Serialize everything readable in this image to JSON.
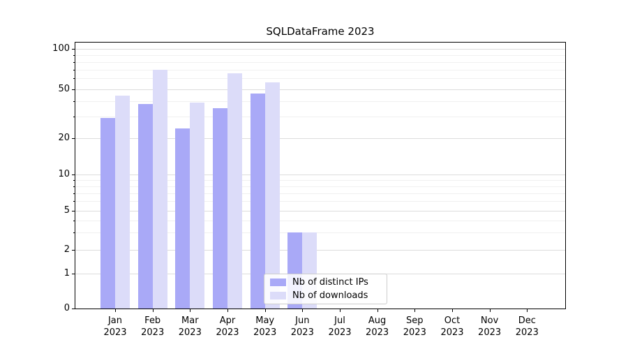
{
  "figure": {
    "title": "SQLDataFrame 2023"
  },
  "legend": {
    "items": [
      {
        "label": "Nb of distinct IPs",
        "color": "#a9a9f7"
      },
      {
        "label": "Nb of downloads",
        "color": "#dcdcf9"
      }
    ]
  },
  "chart_data": {
    "type": "bar",
    "title": "SQLDataFrame 2023",
    "x_months": [
      "Jan",
      "Feb",
      "Mar",
      "Apr",
      "May",
      "Jun",
      "Jul",
      "Aug",
      "Sep",
      "Oct",
      "Nov",
      "Dec"
    ],
    "x_year": "2023",
    "series": [
      {
        "name": "Nb of distinct IPs",
        "color": "#a9a9f7",
        "values": [
          29,
          38,
          24,
          35,
          46,
          3,
          0,
          0,
          0,
          0,
          0,
          0
        ]
      },
      {
        "name": "Nb of downloads",
        "color": "#dcdcf9",
        "values": [
          44,
          70,
          39,
          66,
          56,
          3,
          0,
          0,
          0,
          0,
          0,
          0
        ]
      }
    ],
    "ylabel": "",
    "xlabel": "",
    "yscale": "symlog",
    "ylim": [
      0,
      112
    ],
    "y_major_ticks": [
      0,
      1,
      2,
      5,
      10,
      20,
      50,
      100
    ],
    "y_minor_gridlines": [
      3,
      4,
      6,
      7,
      8,
      9,
      30,
      40,
      60,
      70,
      80,
      90
    ],
    "grid": true,
    "legend_position": "lower center"
  },
  "colors": {
    "grid_major": "#dcdcdc",
    "grid_minor": "#f0f0f0",
    "axis": "#000000",
    "legend_border": "#cccccc"
  }
}
